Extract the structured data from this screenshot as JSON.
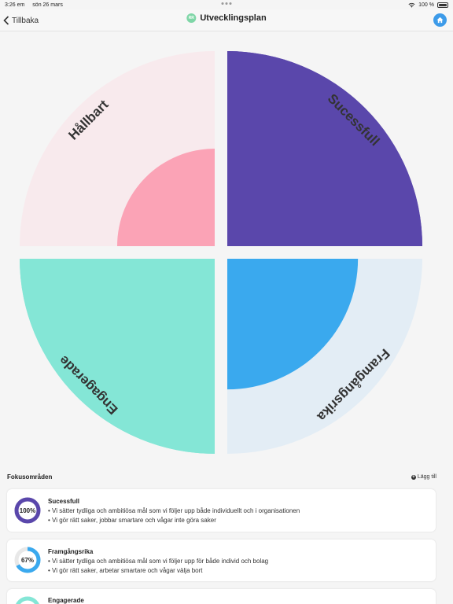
{
  "status": {
    "time": "3:26 em",
    "date": "sön 26 mars",
    "battery": "100 %"
  },
  "nav": {
    "back_label": "Tillbaka",
    "title": "Utvecklingsplan",
    "avatar_initials": "RR"
  },
  "chart_data": {
    "type": "polar-area",
    "max_value": 100,
    "segments": [
      {
        "label": "Sucessfull",
        "value": 100,
        "color": "#5a47ab",
        "track": "#5a47ab"
      },
      {
        "label": "Framgångsrika",
        "value": 67,
        "color": "#3aa9ee",
        "track": "#e3edf5"
      },
      {
        "label": "Engagerade",
        "value": 100,
        "color": "#84e6d6",
        "track": "#84e6d6"
      },
      {
        "label": "Hållbart",
        "value": 50,
        "color": "#fba3b6",
        "track": "#f8eaed"
      }
    ]
  },
  "focus": {
    "title": "Fokusområden",
    "add_label": "Lägg till",
    "cards": [
      {
        "title": "Sucessfull",
        "percent_label": "100%",
        "percent": 100,
        "color": "#5a47ab",
        "bullets": [
          "• Vi sätter tydliga och ambitiösa mål som vi följer upp både individuellt och i organisationen",
          "• Vi gör rätt saker, jobbar smartare och vågar inte göra saker"
        ]
      },
      {
        "title": "Framgångsrika",
        "percent_label": "67%",
        "percent": 67,
        "color": "#3aa9ee",
        "bullets": [
          "•       Vi sätter tydliga och ambitiösa mål som vi följer upp för både individ och bolag",
          "•       Vi gör rätt saker, arbetar smartare och vågar välja bort"
        ]
      },
      {
        "title": "Engagerade",
        "percent_label": "",
        "percent": 100,
        "color": "#84e6d6",
        "bullets": []
      }
    ]
  }
}
